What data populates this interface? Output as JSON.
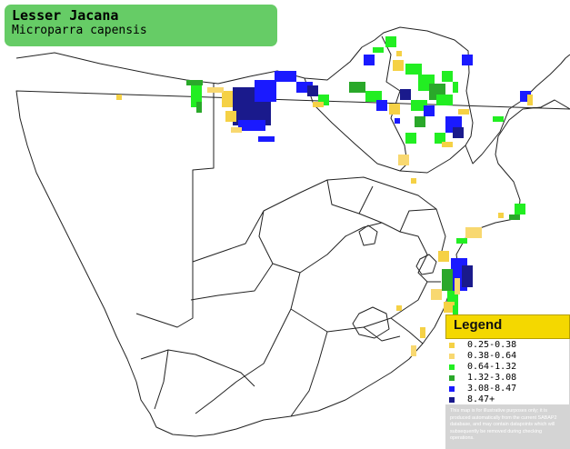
{
  "title": {
    "common_name": "Lesser Jacana",
    "scientific_name": "Microparra capensis"
  },
  "legend": {
    "heading": "Legend",
    "items": [
      {
        "range": "0.25-0.38",
        "color": "#f5d145"
      },
      {
        "range": "0.38-0.64",
        "color": "#f8d870"
      },
      {
        "range": "0.64-1.32",
        "color": "#22ee22"
      },
      {
        "range": "1.32-3.08",
        "color": "#2aa82a"
      },
      {
        "range": "3.08-8.47",
        "color": "#1a1aff"
      },
      {
        "range": "8.47+",
        "color": "#1a1a8c"
      }
    ],
    "disclaimer": "This map is for illustrative purposes only; it is produced automatically from the current SABAP2 database, and may contain datapoints which will subsequently be removed during checking operations."
  }
}
